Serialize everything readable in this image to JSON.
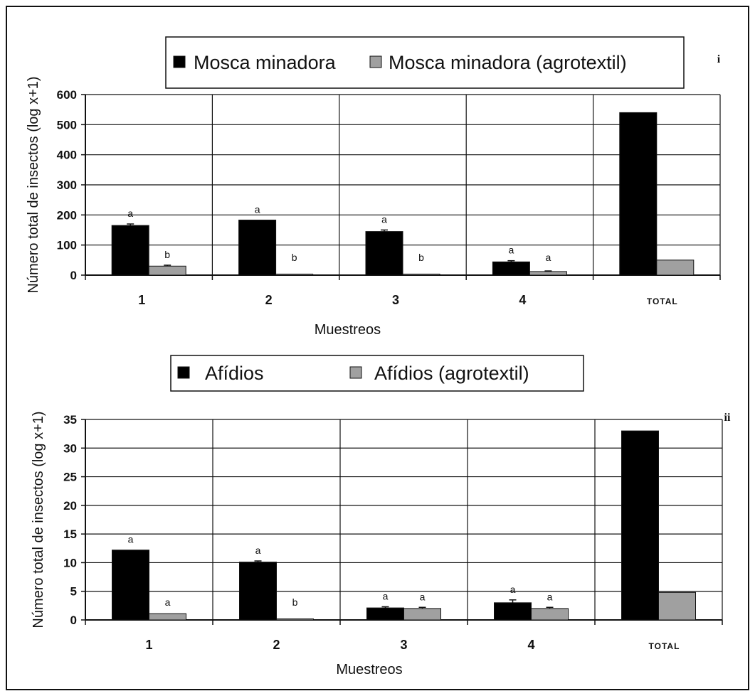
{
  "chart_data": [
    {
      "type": "bar",
      "panel": "i",
      "categories": [
        "1",
        "2",
        "3",
        "4",
        "TOTAL"
      ],
      "series": [
        {
          "name": "Mosca minadora",
          "color": "#000000",
          "values": [
            165,
            183,
            145,
            44,
            540
          ],
          "errors": [
            5,
            0,
            5,
            4,
            0
          ],
          "significance": [
            "a",
            "a",
            "a",
            "a",
            ""
          ]
        },
        {
          "name": "Mosca minadora (agrotextil)",
          "color": "#a0a0a0",
          "values": [
            30,
            2,
            1,
            12,
            50
          ],
          "errors": [
            3,
            0,
            0,
            2,
            0
          ],
          "significance": [
            "b",
            "b",
            "b",
            "a",
            ""
          ]
        }
      ],
      "xlabel": "Muestreos",
      "ylabel": "Número total de insectos (log x+1)",
      "ylim": [
        0,
        600
      ],
      "yticks": [
        "0",
        "100",
        "200",
        "300",
        "400",
        "500",
        "600"
      ],
      "grid": true,
      "legend": "top-center"
    },
    {
      "type": "bar",
      "panel": "ii",
      "categories": [
        "1",
        "2",
        "3",
        "4",
        "TOTAL"
      ],
      "series": [
        {
          "name": "Afídios",
          "color": "#000000",
          "values": [
            12.2,
            10.1,
            2.1,
            3.0,
            33
          ],
          "errors": [
            0,
            0.2,
            0.2,
            0.5,
            0
          ],
          "significance": [
            "a",
            "a",
            "a",
            "a",
            ""
          ]
        },
        {
          "name": "Afídios (agrotextil)",
          "color": "#a0a0a0",
          "values": [
            1.1,
            0,
            2.0,
            2.0,
            4.8
          ],
          "errors": [
            0,
            0,
            0.2,
            0.2,
            0
          ],
          "significance": [
            "a",
            "b",
            "a",
            "a",
            ""
          ]
        }
      ],
      "xlabel": "Muestreos",
      "ylabel": "Número total de insectos (log x+1)",
      "ylim": [
        0,
        35
      ],
      "yticks": [
        "0",
        "5",
        "10",
        "15",
        "20",
        "25",
        "30",
        "35"
      ],
      "grid": true,
      "legend": "top-center"
    }
  ]
}
